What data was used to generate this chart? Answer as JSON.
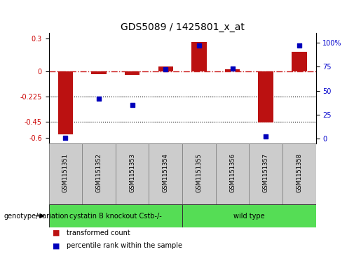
{
  "title": "GDS5089 / 1425801_x_at",
  "samples": [
    "GSM1151351",
    "GSM1151352",
    "GSM1151353",
    "GSM1151354",
    "GSM1151355",
    "GSM1151356",
    "GSM1151357",
    "GSM1151358"
  ],
  "transformed_count": [
    -0.57,
    -0.02,
    -0.03,
    0.05,
    0.27,
    0.02,
    -0.46,
    0.18
  ],
  "percentile": [
    1,
    42,
    35,
    72,
    97,
    73,
    2,
    97
  ],
  "ylim_left": [
    -0.65,
    0.35
  ],
  "ylim_right": [
    -5,
    110
  ],
  "yticks_left": [
    0.3,
    0.0,
    -0.225,
    -0.45,
    -0.6
  ],
  "yticks_left_labels": [
    "0.3",
    "0",
    "-0.225",
    "-0.45",
    "-0.6"
  ],
  "yticks_right": [
    100,
    75,
    50,
    25,
    0
  ],
  "yticks_right_labels": [
    "100%",
    "75",
    "50",
    "25",
    "0"
  ],
  "hlines": [
    -0.225,
    -0.45
  ],
  "bar_color": "#BB1111",
  "scatter_color": "#0000BB",
  "dashed_line_color": "#CC2222",
  "group1_label": "cystatin B knockout Cstb-/-",
  "group2_label": "wild type",
  "group1_count": 4,
  "group2_count": 4,
  "group_color": "#55DD55",
  "genotype_label": "genotype/variation",
  "legend1": "transformed count",
  "legend2": "percentile rank within the sample",
  "title_fontsize": 10,
  "tick_fontsize": 7,
  "sample_fontsize": 6,
  "group_fontsize": 7,
  "legend_fontsize": 7,
  "bar_width": 0.45
}
